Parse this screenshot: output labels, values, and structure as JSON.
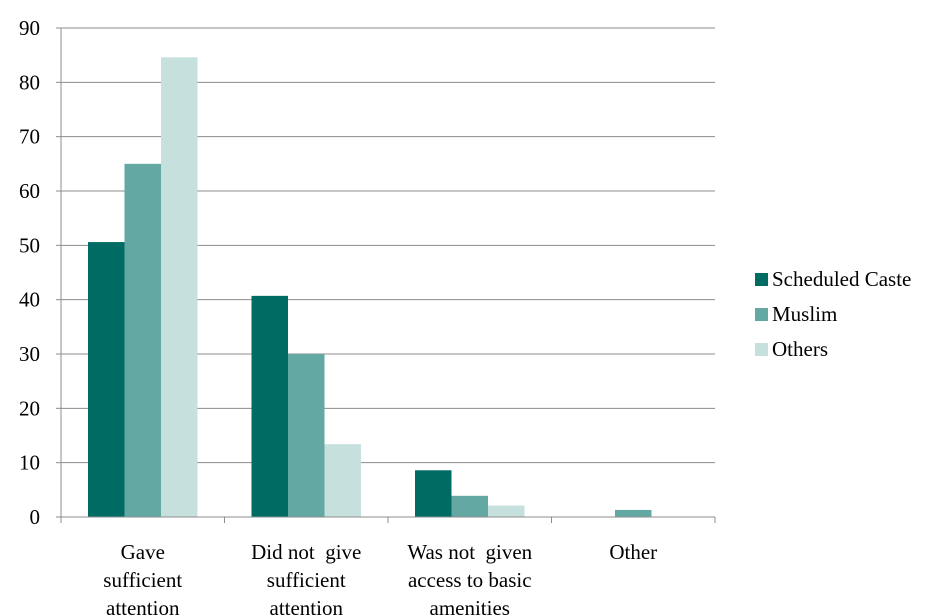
{
  "chart_data": {
    "type": "bar",
    "categories": [
      [
        "Gave",
        "sufficient",
        "attention"
      ],
      [
        "Did not  give",
        "sufficient",
        "attention"
      ],
      [
        "Was not  given",
        "access to basic",
        "amenities"
      ],
      [
        "Other"
      ]
    ],
    "series": [
      {
        "name": "Scheduled Caste",
        "color": "#006b63",
        "values": [
          50.6,
          40.7,
          8.6,
          0
        ]
      },
      {
        "name": "Muslim",
        "color": "#64a8a3",
        "values": [
          65,
          30,
          3.9,
          1.3
        ]
      },
      {
        "name": "Others",
        "color": "#c6e0dd",
        "values": [
          84.6,
          13.4,
          2.1,
          0
        ]
      }
    ],
    "ylim": [
      0,
      90
    ],
    "yticks": [
      0,
      10,
      20,
      30,
      40,
      50,
      60,
      70,
      80,
      90
    ],
    "grid": true,
    "legend_position": "right"
  }
}
